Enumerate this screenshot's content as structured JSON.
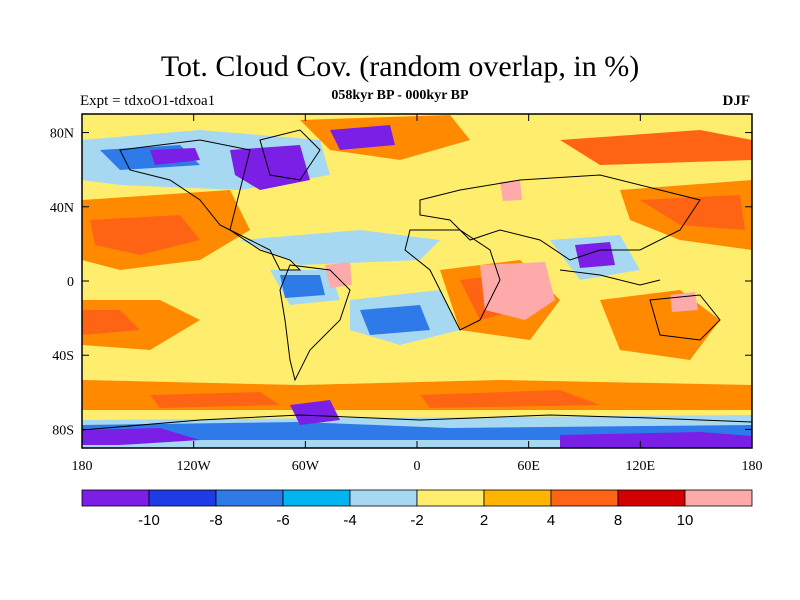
{
  "title": "Tot. Cloud Cov. (random overlap, in %)",
  "subtitle": "058kyr BP - 000kyr BP",
  "left_label": "Expt = tdxoO1-tdxoa1",
  "right_label": "DJF",
  "map": {
    "lon_range": [
      -180,
      180
    ],
    "lat_range": [
      -90,
      90
    ],
    "x_ticks": [
      {
        "lon": -180,
        "label": "180"
      },
      {
        "lon": -120,
        "label": "120W"
      },
      {
        "lon": -60,
        "label": "60W"
      },
      {
        "lon": 0,
        "label": "0"
      },
      {
        "lon": 60,
        "label": "60E"
      },
      {
        "lon": 120,
        "label": "120E"
      },
      {
        "lon": 180,
        "label": "180"
      }
    ],
    "y_ticks": [
      {
        "lat": 80,
        "label": "80N"
      },
      {
        "lat": 40,
        "label": "40N"
      },
      {
        "lat": 0,
        "label": "0"
      },
      {
        "lat": -40,
        "label": "40S"
      },
      {
        "lat": -80,
        "label": "80S"
      }
    ]
  },
  "colorbar": {
    "colors": [
      "#7b1ee6",
      "#1e3ce6",
      "#2e7ae8",
      "#00b4f0",
      "#a6d8f2",
      "#ffee6e",
      "#ffb400",
      "#ff6414",
      "#d40000",
      "#ffaaaa"
    ],
    "labels": [
      {
        "boundary": 1,
        "text": "-10"
      },
      {
        "boundary": 2,
        "text": "-8"
      },
      {
        "boundary": 3,
        "text": "-6"
      },
      {
        "boundary": 4,
        "text": "-4"
      },
      {
        "boundary": 5,
        "text": "-2"
      },
      {
        "boundary": 6,
        "text": "2"
      },
      {
        "boundary": 7,
        "text": "4"
      },
      {
        "boundary": 8,
        "text": "8"
      },
      {
        "boundary": 9,
        "text": "10"
      }
    ]
  }
}
